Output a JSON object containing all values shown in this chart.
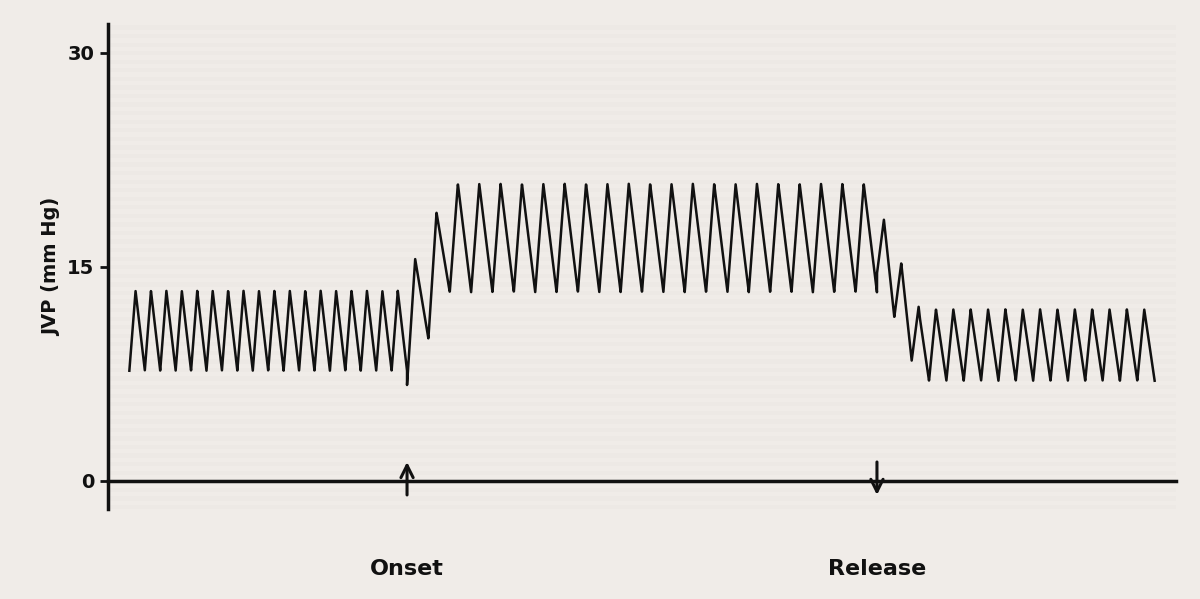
{
  "ylabel": "JVP (mm Hg)",
  "yticks": [
    0,
    15,
    30
  ],
  "ylim": [
    -2,
    32
  ],
  "xlim": [
    0,
    100
  ],
  "baseline_mean": 10.5,
  "elevated_mean": 17.0,
  "amplitude_before": 2.8,
  "amplitude_elevated": 3.8,
  "amplitude_after": 2.5,
  "onset_x": 28,
  "release_x": 72,
  "onset_label": "Onset",
  "release_label": "Release",
  "line_color": "#111111",
  "bg_color": "#f0ece8",
  "plot_bg": "#f0ece8",
  "arrow_color": "#111111",
  "n_cycles_before": 18,
  "n_cycles_elevated": 22,
  "n_cycles_after": 16,
  "label_fontsize": 14,
  "tick_fontsize": 14,
  "annotation_fontsize": 16
}
